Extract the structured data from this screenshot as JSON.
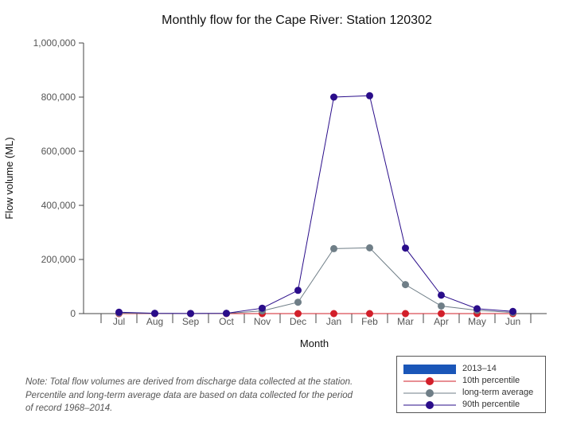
{
  "chart_data": {
    "type": "line",
    "title": "Monthly flow for the Cape River: Station 120302",
    "xlabel": "Month",
    "ylabel": "Flow volume (ML)",
    "ylim": [
      0,
      1000000
    ],
    "yticks": [
      0,
      200000,
      400000,
      600000,
      800000,
      1000000
    ],
    "ytick_labels": [
      "0",
      "200,000",
      "400,000",
      "600,000",
      "800,000",
      "1,000,000"
    ],
    "categories": [
      "Jul",
      "Aug",
      "Sep",
      "Oct",
      "Nov",
      "Dec",
      "Jan",
      "Feb",
      "Mar",
      "Apr",
      "May",
      "Jun"
    ],
    "grid": false,
    "legend_position": "bottom-right",
    "series": [
      {
        "name": "2013–14",
        "kind": "bar",
        "color": "#1a56b8",
        "values": [
          0,
          0,
          0,
          0,
          0,
          0,
          0,
          0,
          0,
          0,
          0,
          0
        ]
      },
      {
        "name": "10th percentile",
        "kind": "line",
        "color": "#d21f2a",
        "values": [
          0,
          0,
          0,
          0,
          0,
          0,
          0,
          0,
          0,
          0,
          0,
          0
        ]
      },
      {
        "name": "long-term average",
        "kind": "line",
        "color": "#6f7e87",
        "values": [
          2000,
          500,
          200,
          800,
          10000,
          42000,
          240000,
          243000,
          107000,
          28000,
          12000,
          4000
        ]
      },
      {
        "name": "90th percentile",
        "kind": "line",
        "color": "#2a0d8a",
        "values": [
          5000,
          1000,
          500,
          1000,
          20000,
          86000,
          800000,
          805000,
          242000,
          68000,
          18000,
          8000
        ]
      }
    ]
  },
  "note": "Note: Total flow volumes are derived from discharge data collected at the station. Percentile and long-term average data are based on data collected for the period of record 1968–2014."
}
